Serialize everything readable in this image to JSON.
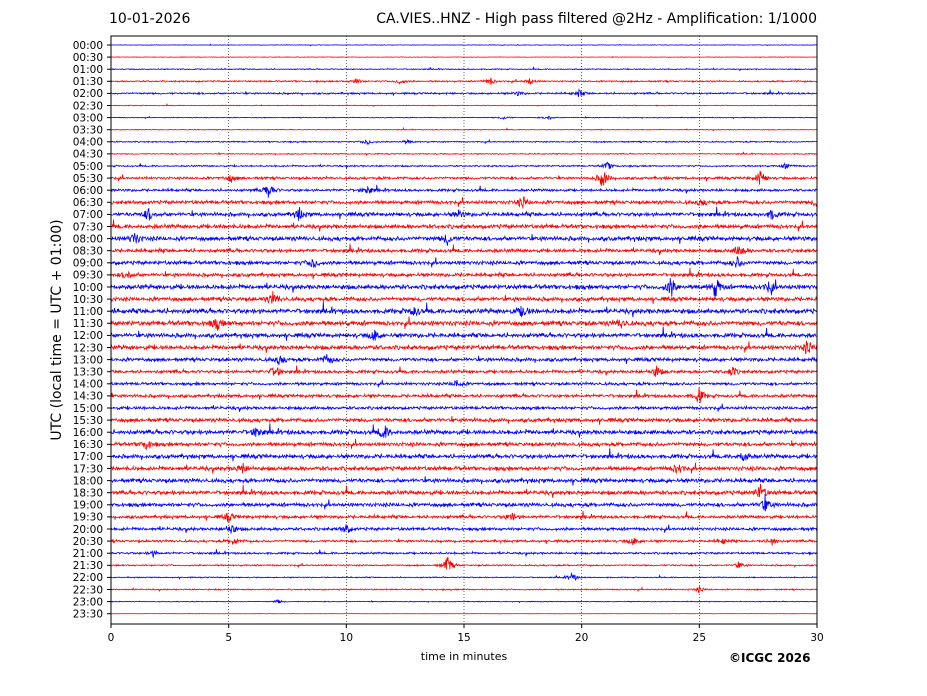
{
  "header": {
    "date": "10-01-2026",
    "title": "CA.VIES..HNZ - High pass filtered @2Hz - Amplification: 1/1000"
  },
  "footer": {
    "copyright": "©ICGC 2026"
  },
  "chart_data": {
    "type": "line",
    "title": "CA.VIES..HNZ - High pass filtered @2Hz - Amplification: 1/1000",
    "xlabel": "time in minutes",
    "ylabel": "UTC (local time = UTC + 01:00)",
    "xlim": [
      0,
      30
    ],
    "x_ticks": [
      0,
      5,
      10,
      15,
      20,
      25,
      30
    ],
    "x_tick_labels": [
      "0",
      "5",
      "10",
      "15",
      "20",
      "25",
      "30"
    ],
    "grid": "vertical dotted lines at 5, 10, 15, 20, 25 minutes",
    "colors": {
      "even_traces": "#0000ff",
      "odd_traces": "#ff0000"
    },
    "row_labels": [
      "00:00",
      "00:30",
      "01:00",
      "01:30",
      "02:00",
      "02:30",
      "03:00",
      "03:30",
      "04:00",
      "04:30",
      "05:00",
      "05:30",
      "06:00",
      "06:30",
      "07:00",
      "07:30",
      "08:00",
      "08:30",
      "09:00",
      "09:30",
      "10:00",
      "10:30",
      "11:00",
      "11:30",
      "12:00",
      "12:30",
      "13:00",
      "13:30",
      "14:00",
      "14:30",
      "15:00",
      "15:30",
      "16:00",
      "16:30",
      "17:00",
      "17:30",
      "18:00",
      "18:30",
      "19:00",
      "19:30",
      "20:00",
      "20:30",
      "21:00",
      "21:30",
      "22:00",
      "22:30",
      "23:00",
      "23:30"
    ],
    "noise_level": [
      0.2,
      0.2,
      0.4,
      0.6,
      0.7,
      0.3,
      0.3,
      0.3,
      0.5,
      0.4,
      0.6,
      1.0,
      1.0,
      1.4,
      1.5,
      1.6,
      1.7,
      1.4,
      1.5,
      1.4,
      1.8,
      1.6,
      1.9,
      1.9,
      1.7,
      1.7,
      1.4,
      1.2,
      1.1,
      1.2,
      1.2,
      1.5,
      1.7,
      1.5,
      1.6,
      1.6,
      1.6,
      1.6,
      1.5,
      1.2,
      1.2,
      0.9,
      0.8,
      0.6,
      0.4,
      0.5,
      0.3,
      0.1
    ],
    "events": [
      {
        "row": 3,
        "minute": 10.4,
        "amp": 3
      },
      {
        "row": 3,
        "minute": 12.3,
        "amp": 3
      },
      {
        "row": 3,
        "minute": 16.1,
        "amp": 4
      },
      {
        "row": 3,
        "minute": 17.8,
        "amp": 3
      },
      {
        "row": 4,
        "minute": 19.9,
        "amp": 4
      },
      {
        "row": 4,
        "minute": 17.3,
        "amp": 2
      },
      {
        "row": 6,
        "minute": 16.7,
        "amp": 2
      },
      {
        "row": 6,
        "minute": 18.6,
        "amp": 2
      },
      {
        "row": 8,
        "minute": 10.9,
        "amp": 3
      },
      {
        "row": 8,
        "minute": 12.6,
        "amp": 2
      },
      {
        "row": 10,
        "minute": 21.1,
        "amp": 4
      },
      {
        "row": 10,
        "minute": 28.7,
        "amp": 3
      },
      {
        "row": 11,
        "minute": 5.1,
        "amp": 4
      },
      {
        "row": 11,
        "minute": 20.9,
        "amp": 10
      },
      {
        "row": 11,
        "minute": 27.6,
        "amp": 8
      },
      {
        "row": 12,
        "minute": 6.7,
        "amp": 9
      },
      {
        "row": 12,
        "minute": 10.9,
        "amp": 5
      },
      {
        "row": 13,
        "minute": 17.5,
        "amp": 6
      },
      {
        "row": 13,
        "minute": 25.1,
        "amp": 4
      },
      {
        "row": 13,
        "minute": 30.0,
        "amp": 5
      },
      {
        "row": 14,
        "minute": 1.6,
        "amp": 6
      },
      {
        "row": 14,
        "minute": 8.0,
        "amp": 6
      },
      {
        "row": 14,
        "minute": 14.8,
        "amp": 4
      },
      {
        "row": 14,
        "minute": 28.1,
        "amp": 5
      },
      {
        "row": 16,
        "minute": 1.0,
        "amp": 6
      },
      {
        "row": 16,
        "minute": 14.3,
        "amp": 6
      },
      {
        "row": 17,
        "minute": 26.7,
        "amp": 7
      },
      {
        "row": 18,
        "minute": 8.6,
        "amp": 6
      },
      {
        "row": 18,
        "minute": 26.6,
        "amp": 6
      },
      {
        "row": 19,
        "minute": 0.7,
        "amp": 5
      },
      {
        "row": 20,
        "minute": 23.8,
        "amp": 10
      },
      {
        "row": 20,
        "minute": 25.7,
        "amp": 11
      },
      {
        "row": 20,
        "minute": 28.0,
        "amp": 6
      },
      {
        "row": 21,
        "minute": 6.9,
        "amp": 7
      },
      {
        "row": 22,
        "minute": 12.9,
        "amp": 5
      },
      {
        "row": 22,
        "minute": 17.5,
        "amp": 6
      },
      {
        "row": 23,
        "minute": 4.5,
        "amp": 6
      },
      {
        "row": 23,
        "minute": 21.7,
        "amp": 5
      },
      {
        "row": 24,
        "minute": 11.2,
        "amp": 6
      },
      {
        "row": 25,
        "minute": 29.6,
        "amp": 7
      },
      {
        "row": 26,
        "minute": 7.2,
        "amp": 6
      },
      {
        "row": 26,
        "minute": 9.2,
        "amp": 6
      },
      {
        "row": 27,
        "minute": 7.0,
        "amp": 7
      },
      {
        "row": 27,
        "minute": 23.2,
        "amp": 6
      },
      {
        "row": 27,
        "minute": 26.4,
        "amp": 5
      },
      {
        "row": 28,
        "minute": 14.7,
        "amp": 4
      },
      {
        "row": 29,
        "minute": 25.0,
        "amp": 8
      },
      {
        "row": 32,
        "minute": 6.2,
        "amp": 6
      },
      {
        "row": 32,
        "minute": 11.6,
        "amp": 8
      },
      {
        "row": 33,
        "minute": 1.5,
        "amp": 5
      },
      {
        "row": 34,
        "minute": 26.9,
        "amp": 6
      },
      {
        "row": 35,
        "minute": 5.6,
        "amp": 5
      },
      {
        "row": 35,
        "minute": 24.1,
        "amp": 6
      },
      {
        "row": 37,
        "minute": 27.6,
        "amp": 8
      },
      {
        "row": 38,
        "minute": 27.8,
        "amp": 7
      },
      {
        "row": 39,
        "minute": 5.0,
        "amp": 5
      },
      {
        "row": 39,
        "minute": 17.0,
        "amp": 5
      },
      {
        "row": 40,
        "minute": 5.1,
        "amp": 6
      },
      {
        "row": 40,
        "minute": 10.0,
        "amp": 5
      },
      {
        "row": 41,
        "minute": 5.2,
        "amp": 4
      },
      {
        "row": 41,
        "minute": 22.2,
        "amp": 4
      },
      {
        "row": 41,
        "minute": 26.0,
        "amp": 3
      },
      {
        "row": 41,
        "minute": 28.1,
        "amp": 4
      },
      {
        "row": 42,
        "minute": 1.8,
        "amp": 3
      },
      {
        "row": 43,
        "minute": 14.3,
        "amp": 9
      },
      {
        "row": 43,
        "minute": 26.7,
        "amp": 3
      },
      {
        "row": 44,
        "minute": 19.6,
        "amp": 5
      },
      {
        "row": 45,
        "minute": 25.0,
        "amp": 3
      },
      {
        "row": 46,
        "minute": 7.1,
        "amp": 2
      }
    ]
  }
}
